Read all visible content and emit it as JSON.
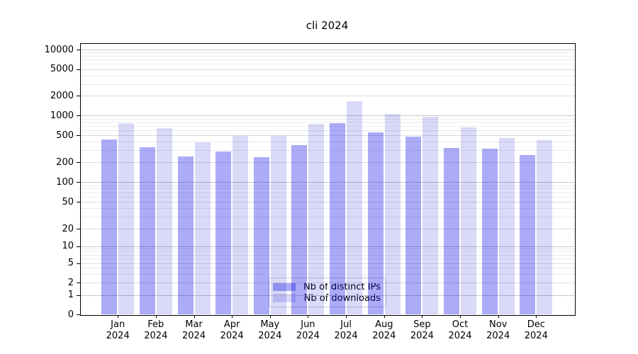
{
  "title": "cli 2024",
  "colors": {
    "ips_bar": "rgba(0,0,230,0.33)",
    "downloads_bar": "rgba(0,0,210,0.15)",
    "grid_decade": "#c8c8c8",
    "grid_major": "#dbdbdb",
    "grid_minor": "#ebebeb",
    "spine": "#000000",
    "text": "#000000"
  },
  "y_axis": {
    "ticks": [
      {
        "v": 10000,
        "label": "10000"
      },
      {
        "v": 5000,
        "label": "5000"
      },
      {
        "v": 2000,
        "label": "2000"
      },
      {
        "v": 1000,
        "label": "1000"
      },
      {
        "v": 500,
        "label": "500"
      },
      {
        "v": 200,
        "label": "200"
      },
      {
        "v": 100,
        "label": "100"
      },
      {
        "v": 50,
        "label": "50"
      },
      {
        "v": 20,
        "label": "20"
      },
      {
        "v": 10,
        "label": "10"
      },
      {
        "v": 5,
        "label": "5"
      },
      {
        "v": 2,
        "label": "2"
      },
      {
        "v": 1,
        "label": "1"
      },
      {
        "v": 0,
        "label": "0"
      }
    ]
  },
  "x_axis": {
    "months": [
      "Jan",
      "Feb",
      "Mar",
      "Apr",
      "May",
      "Jun",
      "Jul",
      "Aug",
      "Sep",
      "Oct",
      "Nov",
      "Dec"
    ],
    "year": "2024"
  },
  "legend": {
    "items": [
      {
        "label": "Nb of distinct IPs",
        "color_key": "ips_bar"
      },
      {
        "label": "Nb of downloads",
        "color_key": "downloads_bar"
      }
    ]
  },
  "chart_data": {
    "type": "bar",
    "title": "cli 2024",
    "categories": [
      "Jan 2024",
      "Feb 2024",
      "Mar 2024",
      "Apr 2024",
      "May 2024",
      "Jun 2024",
      "Jul 2024",
      "Aug 2024",
      "Sep 2024",
      "Oct 2024",
      "Nov 2024",
      "Dec 2024"
    ],
    "series": [
      {
        "name": "Nb of distinct IPs",
        "values": [
          435,
          330,
          242,
          292,
          240,
          356,
          760,
          550,
          478,
          326,
          318,
          255
        ]
      },
      {
        "name": "Nb of downloads",
        "values": [
          770,
          648,
          398,
          485,
          492,
          744,
          1660,
          1064,
          956,
          658,
          452,
          422
        ]
      }
    ],
    "xlabel": "",
    "ylabel": "",
    "yscale": "symlog",
    "yticks": [
      0,
      1,
      2,
      5,
      10,
      20,
      50,
      100,
      200,
      500,
      1000,
      2000,
      5000,
      10000
    ],
    "ylim": [
      0,
      12000
    ],
    "grid": "both",
    "legend_position": "lower center"
  }
}
